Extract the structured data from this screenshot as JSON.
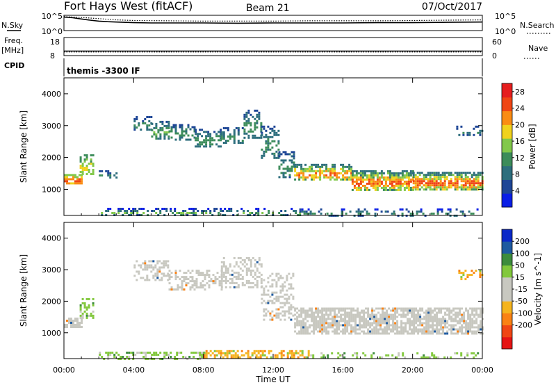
{
  "header": {
    "station": "Fort Hays West (fitACF)",
    "beam": "Beam 21",
    "date": "07/Oct/2017"
  },
  "colors": {
    "velocity_gray": "#c8c8c0",
    "power_scale": [
      "#0a1ee6",
      "#1e4696",
      "#2d6e7d",
      "#3c8c5a",
      "#82c84b",
      "#f0d21e",
      "#fa8c14",
      "#f04614",
      "#e61e1e"
    ],
    "velocity_scale": [
      "#e61414",
      "#f04614",
      "#fa8214",
      "#f5b41e",
      "#c8c8c0",
      "#c8c8c0",
      "#82c83c",
      "#3c8c3c",
      "#1e5aa0",
      "#0a28c8"
    ]
  },
  "chart_data": [
    {
      "type": "line",
      "name": "noise",
      "left_label": "N.Sky",
      "right_label": "N.Search",
      "left_ticks": [
        "10^5",
        "10^0"
      ],
      "right_ticks": [
        "10^5",
        "10^0"
      ],
      "series": [
        {
          "name": "N.Sky",
          "style": "solid",
          "x": [
            0,
            0.5,
            1,
            1.5,
            2,
            2.5,
            3,
            4,
            5,
            6,
            8,
            10,
            12,
            14,
            16,
            18,
            20,
            22,
            24
          ],
          "y": [
            4.4,
            4.2,
            3.8,
            3.4,
            3.1,
            2.9,
            2.8,
            2.6,
            2.5,
            2.5,
            2.5,
            2.4,
            2.5,
            2.5,
            2.5,
            2.6,
            2.6,
            2.7,
            2.8
          ]
        },
        {
          "name": "N.Search",
          "style": "dotted",
          "x": [
            0,
            1,
            2,
            3,
            4,
            6,
            8,
            10,
            12,
            14,
            16,
            18,
            20,
            22,
            24
          ],
          "y": [
            4.6,
            4.3,
            3.9,
            3.5,
            3.3,
            3.2,
            3.1,
            3.1,
            3.1,
            3.2,
            3.2,
            3.2,
            3.3,
            3.4,
            3.5
          ]
        }
      ]
    },
    {
      "type": "line",
      "name": "frequency",
      "left_label": "Freq.",
      "left_unit": "[MHz]",
      "right_label": "Nave",
      "left_ticks": [
        "18",
        "8"
      ],
      "right_ticks": [
        "60",
        "0"
      ],
      "series": [
        {
          "name": "Freq.",
          "style": "solid",
          "x": [
            0,
            24
          ],
          "y": [
            10.5,
            10.5
          ]
        },
        {
          "name": "Nave",
          "style": "dotted",
          "x": [
            0,
            24
          ],
          "y": [
            12,
            12
          ]
        }
      ]
    },
    {
      "type": "table",
      "name": "cpid",
      "label": "CPID",
      "text": "themis -3300 IF"
    },
    {
      "type": "heatmap",
      "name": "power",
      "ylabel": "Slant Range [km]",
      "yticks": [
        1000,
        2000,
        3000,
        4000
      ],
      "ylim": [
        180,
        4500
      ],
      "colorbar_label": "Power [dB]",
      "colorbar_ticks": [
        4,
        8,
        12,
        16,
        20,
        24,
        28
      ],
      "colorbar_range": [
        0,
        30
      ],
      "segments": [
        {
          "t0": 0.0,
          "t1": 1.0,
          "r0": 1180,
          "r1": 1480,
          "p0": 15,
          "p1": 25,
          "d": 0.75
        },
        {
          "t0": 0.9,
          "t1": 1.7,
          "r0": 1500,
          "r1": 2100,
          "p0": 10,
          "p1": 19,
          "d": 0.55
        },
        {
          "t0": 2.0,
          "t1": 3.0,
          "r0": 1350,
          "r1": 1600,
          "p0": 4,
          "p1": 11,
          "d": 0.25
        },
        {
          "t0": 4.0,
          "t1": 5.0,
          "r0": 2850,
          "r1": 3300,
          "p0": 5,
          "p1": 11,
          "d": 0.55
        },
        {
          "t0": 5.0,
          "t1": 6.0,
          "r0": 2600,
          "r1": 3150,
          "p0": 6,
          "p1": 14,
          "d": 0.55
        },
        {
          "t0": 6.0,
          "t1": 7.5,
          "r0": 2550,
          "r1": 3050,
          "p0": 6,
          "p1": 13,
          "d": 0.55
        },
        {
          "t0": 7.5,
          "t1": 9.0,
          "r0": 2350,
          "r1": 2900,
          "p0": 6,
          "p1": 13,
          "d": 0.55
        },
        {
          "t0": 9.0,
          "t1": 10.3,
          "r0": 2450,
          "r1": 2950,
          "p0": 6,
          "p1": 12,
          "d": 0.5
        },
        {
          "t0": 10.3,
          "t1": 11.3,
          "r0": 2600,
          "r1": 3500,
          "p0": 6,
          "p1": 12,
          "d": 0.5
        },
        {
          "t0": 11.3,
          "t1": 12.3,
          "r0": 2000,
          "r1": 3000,
          "p0": 6,
          "p1": 12,
          "d": 0.45
        },
        {
          "t0": 12.3,
          "t1": 13.2,
          "r0": 1400,
          "r1": 2200,
          "p0": 6,
          "p1": 12,
          "d": 0.45
        },
        {
          "t0": 13.2,
          "t1": 16.5,
          "r0": 1300,
          "r1": 1800,
          "p0": 8,
          "p1": 24,
          "d": 0.7
        },
        {
          "t0": 16.5,
          "t1": 20.0,
          "r0": 1000,
          "r1": 1600,
          "p0": 8,
          "p1": 26,
          "d": 0.75
        },
        {
          "t0": 20.0,
          "t1": 24.0,
          "r0": 1000,
          "r1": 1550,
          "p0": 8,
          "p1": 26,
          "d": 0.75
        },
        {
          "t0": 22.5,
          "t1": 24.0,
          "r0": 2700,
          "r1": 3000,
          "p0": 4,
          "p1": 10,
          "d": 0.3
        },
        {
          "t0": 2.0,
          "t1": 13.5,
          "r0": 190,
          "r1": 420,
          "p0": 3,
          "p1": 14,
          "d": 0.4
        },
        {
          "t0": 13.5,
          "t1": 24.0,
          "r0": 190,
          "r1": 400,
          "p0": 3,
          "p1": 12,
          "d": 0.3
        }
      ]
    },
    {
      "type": "heatmap",
      "name": "velocity",
      "ylabel": "Slant Range [km]",
      "yticks": [
        1000,
        2000,
        3000,
        4000
      ],
      "ylim": [
        180,
        4500
      ],
      "xlabel": "Time UT",
      "xticks": [
        "00:00",
        "04:00",
        "08:00",
        "12:00",
        "16:00",
        "20:00",
        "00:00"
      ],
      "xlim": [
        0,
        24
      ],
      "colorbar_label": "Velocity [m s^-1]",
      "colorbar_ticks": [
        200,
        100,
        50,
        15,
        -15,
        -50,
        -100,
        -200
      ],
      "segments": [
        {
          "t0": 0.0,
          "t1": 1.0,
          "r0": 1180,
          "r1": 1480,
          "v": "gray",
          "d": 0.75
        },
        {
          "t0": 0.9,
          "t1": 1.7,
          "r0": 1500,
          "r1": 2100,
          "v": "green",
          "d": 0.45
        },
        {
          "t0": 4.0,
          "t1": 6.0,
          "r0": 2700,
          "r1": 3300,
          "v": "gray",
          "d": 0.5
        },
        {
          "t0": 6.0,
          "t1": 9.0,
          "r0": 2350,
          "r1": 3000,
          "v": "gray",
          "d": 0.5
        },
        {
          "t0": 9.0,
          "t1": 11.3,
          "r0": 2450,
          "r1": 3400,
          "v": "gray",
          "d": 0.45
        },
        {
          "t0": 11.3,
          "t1": 13.2,
          "r0": 1400,
          "r1": 2900,
          "v": "gray",
          "d": 0.4
        },
        {
          "t0": 13.2,
          "t1": 24.0,
          "r0": 1000,
          "r1": 1800,
          "v": "gray",
          "d": 0.75
        },
        {
          "t0": 2.0,
          "t1": 8.0,
          "r0": 190,
          "r1": 400,
          "v": "green",
          "d": 0.4
        },
        {
          "t0": 8.0,
          "t1": 14.0,
          "r0": 190,
          "r1": 450,
          "v": "orange",
          "d": 0.55
        },
        {
          "t0": 14.0,
          "t1": 24.0,
          "r0": 190,
          "r1": 380,
          "v": "green",
          "d": 0.25
        },
        {
          "t0": 22.5,
          "t1": 24.0,
          "r0": 2700,
          "r1": 3000,
          "v": "orange",
          "d": 0.3
        }
      ]
    }
  ]
}
